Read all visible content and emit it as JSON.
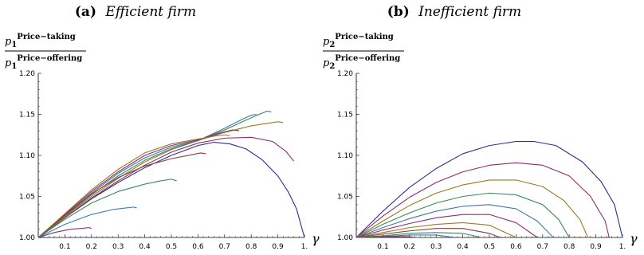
{
  "chart_data": [
    {
      "type": "line",
      "panel_label": "(a)",
      "title": "Efficient firm",
      "ylabel_num_base": "p",
      "ylabel_num_sub": "1",
      "ylabel_num_sup": "Price−taking",
      "ylabel_den_base": "p",
      "ylabel_den_sub": "1",
      "ylabel_den_sup": "Price−offering",
      "xlabel": "γ",
      "xlim": [
        0,
        1
      ],
      "ylim": [
        1.0,
        1.2
      ],
      "xticks": [
        "0.1",
        "0.2",
        "0.3",
        "0.4",
        "0.5",
        "0.6",
        "0.7",
        "0.8",
        "0.9",
        "1."
      ],
      "yticks": [
        "1.00",
        "1.05",
        "1.10",
        "1.15",
        "1.20"
      ],
      "series": [
        {
          "color": "#2e2e8c",
          "x": [
            0,
            0.1,
            0.2,
            0.3,
            0.4,
            0.5,
            0.6,
            0.66,
            0.72,
            0.78,
            0.84,
            0.9,
            0.94,
            0.97,
            1.0
          ],
          "y": [
            1.0,
            1.024,
            1.047,
            1.067,
            1.085,
            1.1,
            1.112,
            1.116,
            1.114,
            1.108,
            1.095,
            1.075,
            1.055,
            1.035,
            1.0
          ]
        },
        {
          "color": "#8c2d6e",
          "x": [
            0,
            0.1,
            0.2,
            0.3,
            0.4,
            0.5,
            0.6,
            0.7,
            0.8,
            0.88,
            0.93,
            0.96
          ],
          "y": [
            1.0,
            1.024,
            1.048,
            1.069,
            1.088,
            1.104,
            1.115,
            1.121,
            1.122,
            1.117,
            1.105,
            1.093
          ]
        },
        {
          "color": "#9a7b22",
          "x": [
            0,
            0.1,
            0.2,
            0.3,
            0.4,
            0.5,
            0.6,
            0.7,
            0.8,
            0.86,
            0.9,
            0.92
          ],
          "y": [
            1.0,
            1.025,
            1.05,
            1.072,
            1.092,
            1.107,
            1.118,
            1.128,
            1.136,
            1.139,
            1.141,
            1.14
          ]
        },
        {
          "color": "#3a8a56",
          "x": [
            0,
            0.1,
            0.2,
            0.3,
            0.4,
            0.5,
            0.6,
            0.7,
            0.78,
            0.83,
            0.86,
            0.875
          ],
          "y": [
            1.0,
            1.026,
            1.052,
            1.075,
            1.094,
            1.108,
            1.118,
            1.131,
            1.143,
            1.15,
            1.154,
            1.153
          ]
        },
        {
          "color": "#3c79a8",
          "x": [
            0,
            0.1,
            0.2,
            0.3,
            0.4,
            0.5,
            0.6,
            0.7,
            0.76,
            0.8,
            0.82
          ],
          "y": [
            1.0,
            1.027,
            1.054,
            1.078,
            1.097,
            1.11,
            1.118,
            1.133,
            1.143,
            1.149,
            1.15
          ]
        },
        {
          "color": "#8c2d6e",
          "x": [
            0,
            0.1,
            0.2,
            0.3,
            0.4,
            0.5,
            0.6,
            0.68,
            0.73,
            0.755
          ],
          "y": [
            1.0,
            1.028,
            1.056,
            1.08,
            1.1,
            1.112,
            1.119,
            1.127,
            1.131,
            1.13
          ]
        },
        {
          "color": "#9a7b22",
          "x": [
            0,
            0.1,
            0.2,
            0.3,
            0.4,
            0.5,
            0.6,
            0.64,
            0.67,
            0.7,
            0.72
          ],
          "y": [
            1.0,
            1.029,
            1.058,
            1.083,
            1.103,
            1.114,
            1.12,
            1.122,
            1.124,
            1.125,
            1.124
          ]
        },
        {
          "color": "#8a3d3d",
          "x": [
            0,
            0.1,
            0.2,
            0.3,
            0.4,
            0.5,
            0.58,
            0.61,
            0.63
          ],
          "y": [
            1.0,
            1.027,
            1.053,
            1.073,
            1.087,
            1.096,
            1.101,
            1.103,
            1.102
          ]
        },
        {
          "color": "#3a8a56",
          "x": [
            0,
            0.1,
            0.2,
            0.3,
            0.4,
            0.46,
            0.5,
            0.52
          ],
          "y": [
            1.0,
            1.022,
            1.042,
            1.056,
            1.065,
            1.069,
            1.071,
            1.069
          ]
        },
        {
          "color": "#3c79a8",
          "x": [
            0,
            0.1,
            0.2,
            0.28,
            0.33,
            0.36,
            0.37
          ],
          "y": [
            1.0,
            1.016,
            1.028,
            1.034,
            1.036,
            1.037,
            1.036
          ]
        },
        {
          "color": "#8c2d6e",
          "x": [
            0,
            0.06,
            0.12,
            0.16,
            0.19,
            0.2
          ],
          "y": [
            1.0,
            1.006,
            1.01,
            1.011,
            1.012,
            1.011
          ]
        }
      ]
    },
    {
      "type": "line",
      "panel_label": "(b)",
      "title": "Inefficient firm",
      "ylabel_num_base": "p",
      "ylabel_num_sub": "2",
      "ylabel_num_sup": "Price−taking",
      "ylabel_den_base": "p",
      "ylabel_den_sub": "2",
      "ylabel_den_sup": "Price−offering",
      "xlabel": "γ",
      "xlim": [
        0,
        1
      ],
      "ylim": [
        1.0,
        1.2
      ],
      "xticks": [
        "0.1",
        "0.2",
        "0.3",
        "0.4",
        "0.5",
        "0.6",
        "0.7",
        "0.8",
        "0.9",
        "1."
      ],
      "yticks": [
        "1.00",
        "1.05",
        "1.10",
        "1.15",
        "1.20"
      ],
      "series": [
        {
          "color": "#2e2e8c",
          "x": [
            0,
            0.1,
            0.2,
            0.3,
            0.4,
            0.5,
            0.6,
            0.667,
            0.75,
            0.85,
            0.92,
            0.97,
            1.0
          ],
          "y": [
            1.0,
            1.032,
            1.061,
            1.084,
            1.102,
            1.112,
            1.117,
            1.117,
            1.112,
            1.092,
            1.068,
            1.04,
            1.0
          ]
        },
        {
          "color": "#8c2d6e",
          "x": [
            0,
            0.1,
            0.2,
            0.3,
            0.4,
            0.5,
            0.6,
            0.7,
            0.8,
            0.88,
            0.935,
            0.95
          ],
          "y": [
            1.0,
            1.026,
            1.049,
            1.067,
            1.08,
            1.088,
            1.091,
            1.088,
            1.075,
            1.05,
            1.02,
            1.0
          ]
        },
        {
          "color": "#9a7b22",
          "x": [
            0,
            0.1,
            0.2,
            0.3,
            0.4,
            0.5,
            0.6,
            0.7,
            0.78,
            0.84,
            0.87
          ],
          "y": [
            1.0,
            1.02,
            1.039,
            1.054,
            1.064,
            1.07,
            1.07,
            1.062,
            1.045,
            1.022,
            1.0
          ]
        },
        {
          "color": "#3a8a56",
          "x": [
            0,
            0.1,
            0.2,
            0.3,
            0.4,
            0.5,
            0.6,
            0.7,
            0.76,
            0.8
          ],
          "y": [
            1.0,
            1.016,
            1.03,
            1.042,
            1.05,
            1.054,
            1.052,
            1.04,
            1.022,
            1.0
          ]
        },
        {
          "color": "#3c79a8",
          "x": [
            0,
            0.1,
            0.2,
            0.3,
            0.4,
            0.5,
            0.6,
            0.68,
            0.74
          ],
          "y": [
            1.0,
            1.012,
            1.023,
            1.032,
            1.038,
            1.04,
            1.035,
            1.02,
            1.0
          ]
        },
        {
          "color": "#8c2d6e",
          "x": [
            0,
            0.1,
            0.2,
            0.3,
            0.4,
            0.5,
            0.6,
            0.68
          ],
          "y": [
            1.0,
            1.009,
            1.017,
            1.024,
            1.028,
            1.028,
            1.018,
            1.0
          ]
        },
        {
          "color": "#9a7b22",
          "x": [
            0,
            0.1,
            0.2,
            0.3,
            0.4,
            0.5,
            0.6
          ],
          "y": [
            1.0,
            1.006,
            1.012,
            1.016,
            1.018,
            1.015,
            1.0
          ]
        },
        {
          "color": "#8a3d3d",
          "x": [
            0,
            0.1,
            0.2,
            0.3,
            0.4,
            0.5,
            0.54
          ],
          "y": [
            1.0,
            1.004,
            1.008,
            1.011,
            1.011,
            1.005,
            1.0
          ]
        },
        {
          "color": "#3a8a56",
          "x": [
            0,
            0.1,
            0.2,
            0.3,
            0.4,
            0.47
          ],
          "y": [
            1.0,
            1.002,
            1.005,
            1.006,
            1.005,
            1.0
          ]
        },
        {
          "color": "#3c79a8",
          "x": [
            0,
            0.1,
            0.2,
            0.3,
            0.37
          ],
          "y": [
            1.0,
            1.001,
            1.003,
            1.003,
            1.0
          ]
        },
        {
          "color": "#8c2d6e",
          "x": [
            0,
            0.1,
            0.2,
            0.22
          ],
          "y": [
            1.0,
            1.001,
            1.001,
            1.0
          ]
        }
      ]
    }
  ]
}
